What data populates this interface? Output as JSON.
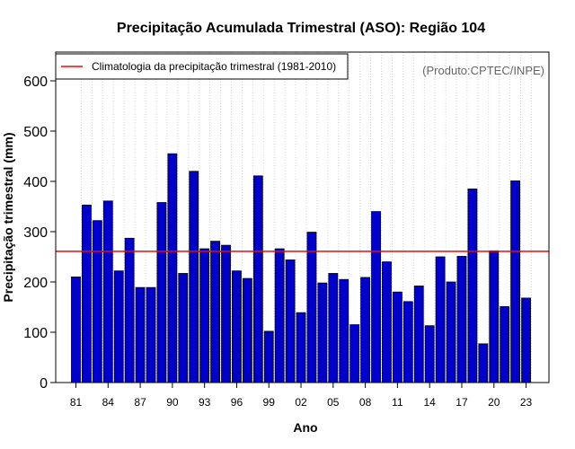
{
  "chart_data": {
    "type": "bar",
    "title": "Precipitação Acumulada Trimestral (ASO): Região 104",
    "xlabel": "Ano",
    "ylabel": "Precipitação trimestral (mm)",
    "credit": "(Produto:CPTEC/INPE)",
    "ylim": [
      0,
      650
    ],
    "yticks": [
      0,
      100,
      200,
      300,
      400,
      500,
      600
    ],
    "grid": "vertical dotted",
    "legend_position": "top-left",
    "bar_color": "#0000cc",
    "climatology": {
      "label": "Climatologia da precipitação trimestral (1981-2010)",
      "value": 261,
      "color": "#ff0000"
    },
    "categories": [
      "1981",
      "1982",
      "1983",
      "1984",
      "1985",
      "1986",
      "1987",
      "1988",
      "1989",
      "1990",
      "1991",
      "1992",
      "1993",
      "1994",
      "1995",
      "1996",
      "1997",
      "1998",
      "1999",
      "2000",
      "2001",
      "2002",
      "2003",
      "2004",
      "2005",
      "2006",
      "2007",
      "2008",
      "2009",
      "2010",
      "2011",
      "2012",
      "2013",
      "2014",
      "2015",
      "2016",
      "2017",
      "2018",
      "2019",
      "2020",
      "2021",
      "2022",
      "2023"
    ],
    "values": [
      210,
      353,
      322,
      361,
      222,
      287,
      189,
      189,
      358,
      455,
      217,
      420,
      266,
      281,
      273,
      222,
      207,
      411,
      102,
      266,
      244,
      139,
      299,
      198,
      217,
      205,
      115,
      209,
      340,
      240,
      180,
      161,
      192,
      113,
      250,
      200,
      251,
      385,
      77,
      262,
      151,
      401,
      168
    ],
    "xtick_labels": [
      "81",
      "84",
      "87",
      "90",
      "93",
      "96",
      "99",
      "02",
      "05",
      "08",
      "11",
      "14",
      "17",
      "20",
      "23"
    ],
    "xtick_every": 3
  }
}
